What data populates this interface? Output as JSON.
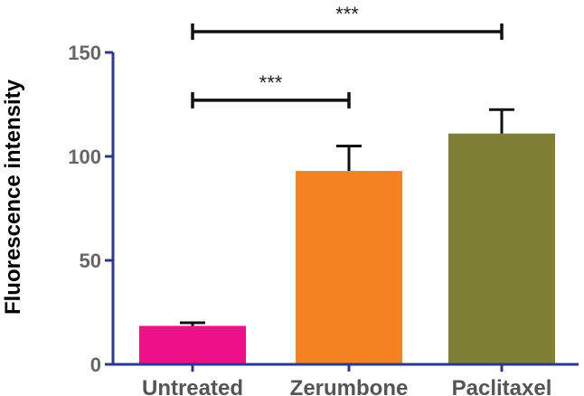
{
  "chart_data": {
    "type": "bar",
    "ylabel": "Fluorescence intensity",
    "xlabel": "",
    "ylim": [
      0,
      150
    ],
    "yticks": [
      0,
      50,
      100,
      150
    ],
    "categories": [
      "Untreated",
      "Zerumbone",
      "Paclitaxel"
    ],
    "values": [
      18.5,
      93,
      111
    ],
    "errors": [
      1.5,
      12,
      11.5
    ],
    "colors": [
      "#ee1289",
      "#f58220",
      "#808034"
    ],
    "axis_color": "#2b3a8c",
    "significance": [
      {
        "from": "Untreated",
        "to": "Zerumbone",
        "label": "***",
        "level": 127
      },
      {
        "from": "Untreated",
        "to": "Paclitaxel",
        "label": "***",
        "level": 160
      }
    ],
    "grid": false
  }
}
